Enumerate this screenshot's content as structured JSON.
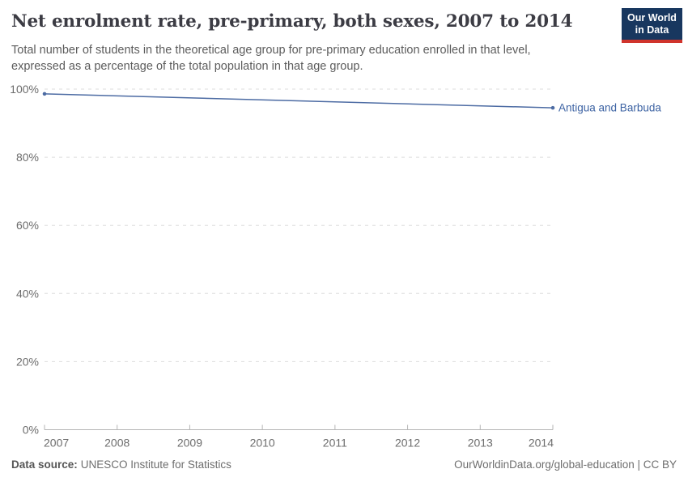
{
  "header": {
    "title": "Net enrolment rate, pre-primary, both sexes, 2007 to 2014",
    "subtitle": "Total number of students in the theoretical age group for pre-primary education enrolled in that level, expressed as a percentage of the total population in that age group.",
    "logo": {
      "line1": "Our World",
      "line2": "in Data"
    }
  },
  "footer": {
    "source_label": "Data source:",
    "source_value": "UNESCO Institute for Statistics",
    "citation": "OurWorldinData.org/global-education | CC BY"
  },
  "chart_data": {
    "type": "line",
    "title": "Net enrolment rate, pre-primary, both sexes, 2007 to 2014",
    "xlabel": "",
    "ylabel": "",
    "xlim": [
      2007,
      2014
    ],
    "ylim": [
      0,
      100
    ],
    "x_ticks": [
      2007,
      2008,
      2009,
      2010,
      2011,
      2012,
      2013,
      2014
    ],
    "y_ticks": [
      0,
      20,
      40,
      60,
      80,
      100
    ],
    "y_tick_suffix": "%",
    "grid": "horizontal-dashed",
    "legend_position": "end-of-line-label",
    "interpolation": "linear",
    "markers": "endpoints-only",
    "series": [
      {
        "name": "Antigua and Barbuda",
        "points": [
          {
            "year": 2007,
            "value": 98.6
          },
          {
            "year": 2014,
            "value": 94.5
          }
        ]
      }
    ]
  },
  "colors": {
    "line": "#4c6ba3",
    "entity_label": "#3d63a3",
    "grid": "#dedede",
    "axis": "#b5b5b5",
    "tick_label": "#6d6d6d",
    "logo_bg": "#18375f",
    "logo_stripe": "#d0342c"
  }
}
